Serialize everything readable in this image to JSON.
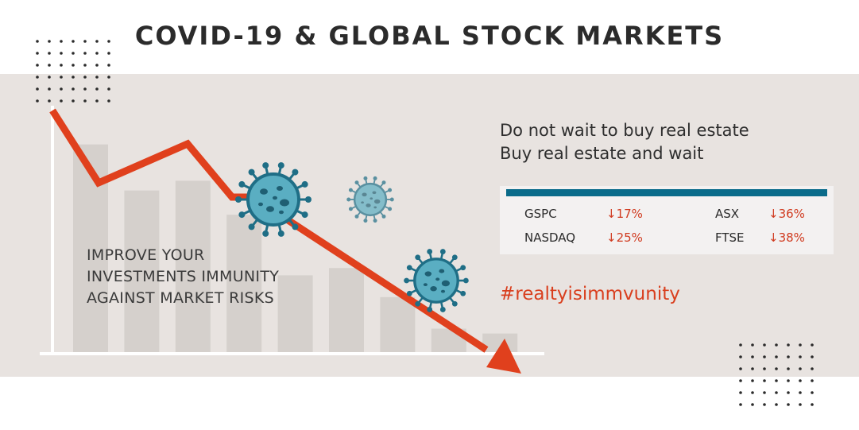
{
  "title": "COVID-19 & GLOBAL STOCK MARKETS",
  "slogan": {
    "line1": "Do not wait to buy real estate",
    "line2": "Buy real estate and wait"
  },
  "tickers": [
    {
      "name": "GSPC",
      "change": "↓17%"
    },
    {
      "name": "ASX",
      "change": "↓36%"
    },
    {
      "name": "NASDAQ",
      "change": "↓25%"
    },
    {
      "name": "FTSE",
      "change": "↓38%"
    }
  ],
  "tagline": {
    "line1": "IMPROVE YOUR",
    "line2": "INVESTMENTS IMMUNITY",
    "line3": "AGAINST MARKET RISKS"
  },
  "hashtag": "#realtyisimmvunity",
  "colors": {
    "accent_red": "#d93f1e",
    "teal": "#0a6b8a",
    "virus_fill": "#5aaec2",
    "band_bg": "#e8e3e0",
    "bar_gray": "#d5d0cc"
  },
  "bar_heights_relative": [
    0.86,
    0.67,
    0.71,
    0.57,
    0.32,
    0.35,
    0.23,
    0.1,
    0.08
  ]
}
